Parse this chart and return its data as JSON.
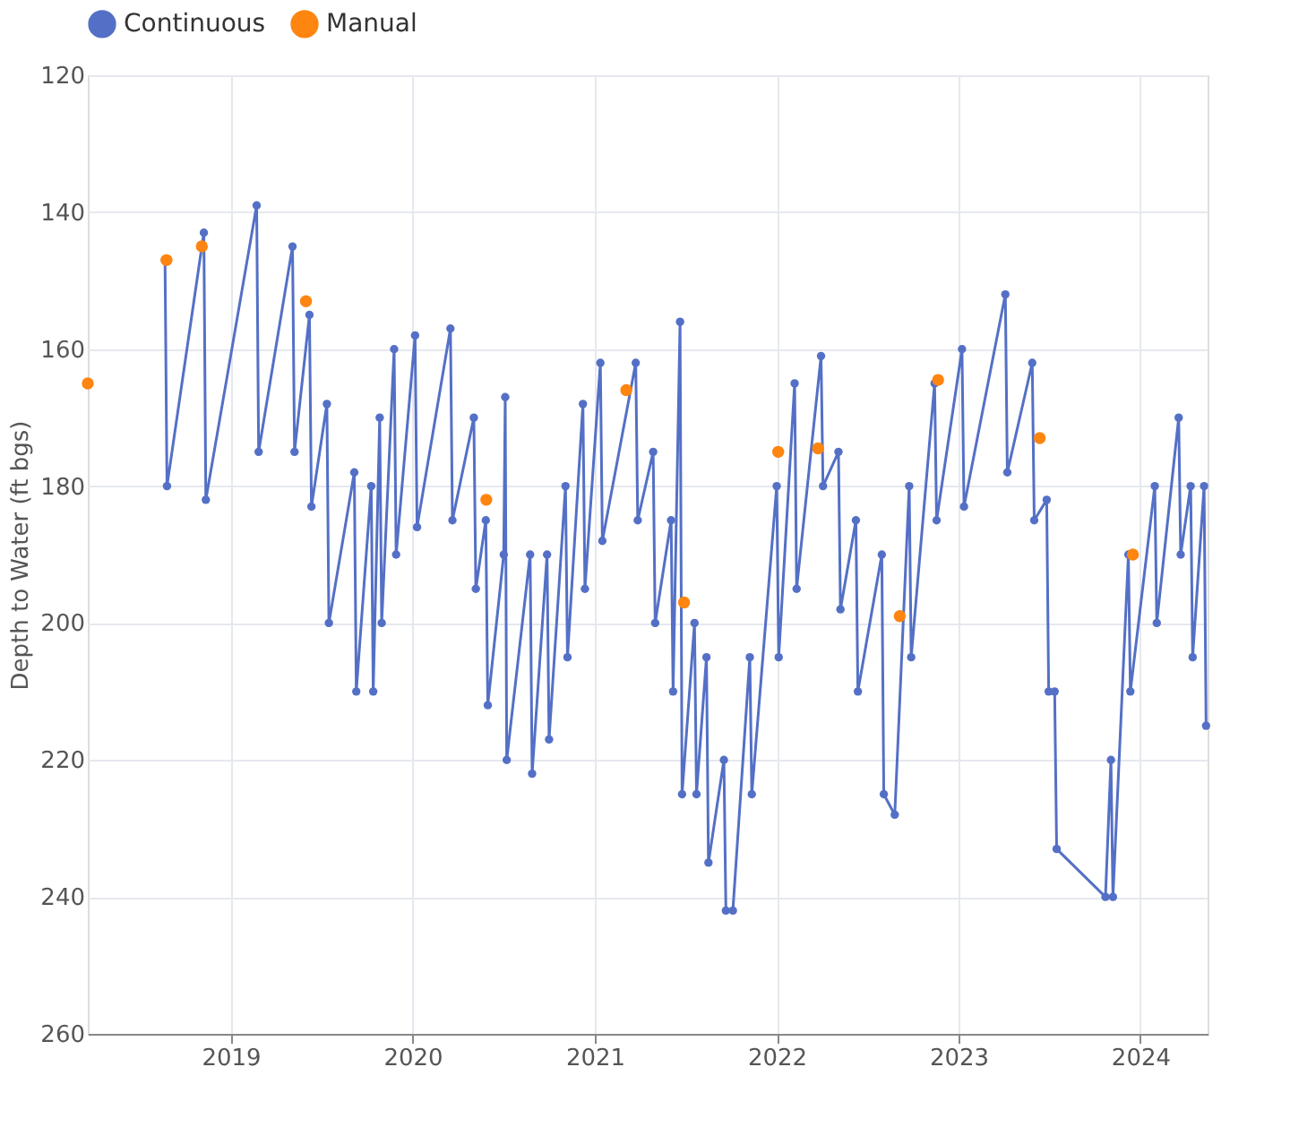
{
  "chart_data": {
    "type": "line",
    "ylabel": "Depth to Water (ft bgs)",
    "ylim": [
      260,
      120
    ],
    "yticks": [
      120,
      140,
      160,
      180,
      200,
      220,
      240,
      260
    ],
    "xlim": [
      "2018-03-20",
      "2024-05-15"
    ],
    "xticks": [
      {
        "value": "2019-01-01",
        "label": "2019"
      },
      {
        "value": "2020-01-01",
        "label": "2020"
      },
      {
        "value": "2021-01-01",
        "label": "2021"
      },
      {
        "value": "2022-01-01",
        "label": "2022"
      },
      {
        "value": "2023-01-01",
        "label": "2023"
      },
      {
        "value": "2024-01-01",
        "label": "2024"
      }
    ],
    "grid": true,
    "legend": "top",
    "marker": "circle",
    "line_style": "solid",
    "series": [
      {
        "name": "Continuous",
        "color": "#5470c6",
        "x": [
          "2018-08-22",
          "2018-08-26",
          "2018-11-08",
          "2018-11-12",
          "2019-02-22",
          "2019-02-26",
          "2019-05-05",
          "2019-05-09",
          "2019-06-08",
          "2019-06-12",
          "2019-07-13",
          "2019-07-17",
          "2019-09-06",
          "2019-09-10",
          "2019-10-10",
          "2019-10-14",
          "2019-10-27",
          "2019-10-31",
          "2019-11-25",
          "2019-11-29",
          "2020-01-06",
          "2020-01-10",
          "2020-03-17",
          "2020-03-21",
          "2020-05-03",
          "2020-05-07",
          "2020-05-27",
          "2020-05-31",
          "2020-07-02",
          "2020-07-05",
          "2020-07-08",
          "2020-08-24",
          "2020-08-28",
          "2020-09-27",
          "2020-10-01",
          "2020-11-03",
          "2020-11-07",
          "2020-12-08",
          "2020-12-12",
          "2021-01-12",
          "2021-01-16",
          "2021-03-24",
          "2021-03-28",
          "2021-04-28",
          "2021-05-02",
          "2021-06-03",
          "2021-06-07",
          "2021-06-21",
          "2021-06-25",
          "2021-07-20",
          "2021-07-24",
          "2021-08-13",
          "2021-08-17",
          "2021-09-17",
          "2021-09-21",
          "2021-10-05",
          "2021-11-08",
          "2021-11-12",
          "2022-01-01",
          "2022-01-05",
          "2022-02-06",
          "2022-02-10",
          "2022-03-31",
          "2022-04-04",
          "2022-05-05",
          "2022-05-09",
          "2022-06-09",
          "2022-06-13",
          "2022-07-31",
          "2022-08-04",
          "2022-08-26",
          "2022-09-24",
          "2022-09-28",
          "2022-11-14",
          "2022-11-18",
          "2023-01-08",
          "2023-01-12",
          "2023-04-05",
          "2023-04-09",
          "2023-05-29",
          "2023-06-02",
          "2023-06-27",
          "2023-07-01",
          "2023-07-13",
          "2023-07-17",
          "2023-10-23",
          "2023-11-03",
          "2023-11-07",
          "2023-12-08",
          "2023-12-12",
          "2024-01-30",
          "2024-02-03",
          "2024-03-18",
          "2024-03-22",
          "2024-04-11",
          "2024-04-15",
          "2024-05-08",
          "2024-05-12"
        ],
        "values": [
          147,
          180,
          143,
          182,
          139,
          175,
          145,
          175,
          155,
          183,
          168,
          200,
          178,
          210,
          180,
          210,
          170,
          200,
          160,
          190,
          158,
          186,
          157,
          185,
          170,
          195,
          185,
          212,
          190,
          167,
          220,
          190,
          222,
          190,
          217,
          180,
          205,
          168,
          195,
          162,
          188,
          162,
          185,
          175,
          200,
          185,
          210,
          156,
          225,
          200,
          225,
          205,
          235,
          220,
          242,
          242,
          205,
          225,
          180,
          205,
          165,
          195,
          161,
          180,
          175,
          198,
          185,
          210,
          190,
          225,
          228,
          180,
          205,
          165,
          185,
          160,
          183,
          152,
          178,
          162,
          185,
          182,
          210,
          210,
          233,
          240,
          220,
          240,
          190,
          210,
          180,
          200,
          170,
          190,
          180,
          205,
          180,
          215
        ]
      },
      {
        "name": "Manual",
        "type": "scatter",
        "color": "#fd8510",
        "x": [
          "2018-03-20",
          "2018-08-25",
          "2018-11-04",
          "2019-06-01",
          "2020-05-28",
          "2021-03-05",
          "2021-06-29",
          "2022-01-04",
          "2022-03-25",
          "2022-09-05",
          "2022-11-21",
          "2023-06-13",
          "2023-12-17"
        ],
        "values": [
          165,
          147,
          145,
          153,
          182,
          166,
          197,
          175,
          174.5,
          199,
          164.5,
          173,
          190
        ]
      }
    ]
  }
}
